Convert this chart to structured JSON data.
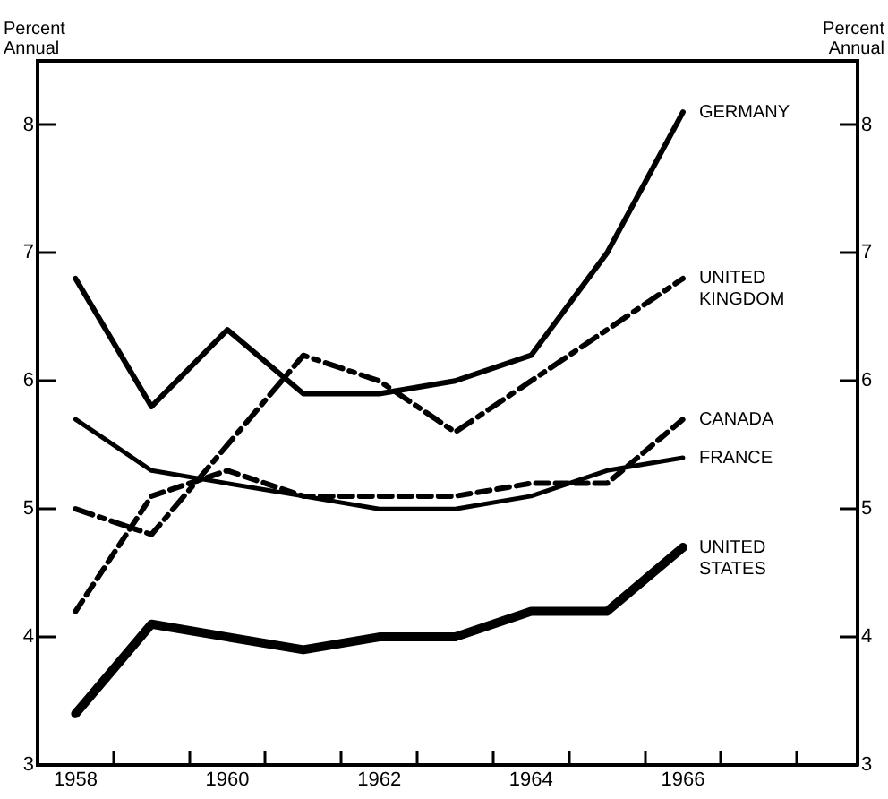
{
  "chart_data": {
    "type": "line",
    "ylabel": "Percent Annual",
    "y2label": "Percent Annual",
    "xlim": [
      1957.5,
      1968.3
    ],
    "xticks": [
      {
        "value": 1958,
        "label": "1958"
      },
      {
        "value": 1960,
        "label": "1960"
      },
      {
        "value": 1962,
        "label": "1962"
      },
      {
        "value": 1964,
        "label": "1964"
      },
      {
        "value": 1966,
        "label": "1966"
      },
      {
        "value": 1958.5,
        "label": null
      },
      {
        "value": 1959.5,
        "label": null
      },
      {
        "value": 1960.5,
        "label": null
      },
      {
        "value": 1961.5,
        "label": null
      },
      {
        "value": 1962.5,
        "label": null
      },
      {
        "value": 1963.5,
        "label": null
      },
      {
        "value": 1964.5,
        "label": null
      },
      {
        "value": 1965.5,
        "label": null
      },
      {
        "value": 1966.5,
        "label": null
      },
      {
        "value": 1967.5,
        "label": null
      }
    ],
    "ylim": [
      3,
      8.5
    ],
    "yticks": [
      3,
      4,
      5,
      6,
      7,
      8
    ],
    "y2lim": [
      3,
      8.5
    ],
    "y2ticks": [
      3,
      4,
      5,
      6,
      7,
      8
    ],
    "x": [
      1958,
      1959,
      1960,
      1961,
      1962,
      1963,
      1964,
      1965,
      1966
    ],
    "grid": false,
    "legend": false,
    "marker": "none",
    "series": [
      {
        "name": "GERMANY",
        "color": "#000000",
        "line_style": "solid",
        "values": [
          6.8,
          5.8,
          6.4,
          5.9,
          5.9,
          6.0,
          6.2,
          7.0,
          8.1
        ]
      },
      {
        "name": "UNITED KINGDOM",
        "color": "#000000",
        "line_style": "dashdot",
        "values": [
          5.0,
          4.8,
          5.5,
          6.2,
          6.0,
          5.6,
          6.0,
          6.4,
          6.8
        ]
      },
      {
        "name": "CANADA",
        "color": "#000000",
        "line_style": "dashed",
        "values": [
          4.2,
          5.1,
          5.3,
          5.1,
          5.1,
          5.1,
          5.2,
          5.2,
          5.7
        ]
      },
      {
        "name": "FRANCE",
        "color": "#000000",
        "line_style": "solid",
        "values": [
          5.7,
          5.3,
          5.2,
          5.1,
          5.0,
          5.0,
          5.1,
          5.3,
          5.4
        ]
      },
      {
        "name": "UNITED STATES",
        "color": "#000000",
        "line_style": "solid",
        "values": [
          3.4,
          4.1,
          4.0,
          3.9,
          4.0,
          4.0,
          4.2,
          4.2,
          4.7
        ]
      }
    ]
  }
}
